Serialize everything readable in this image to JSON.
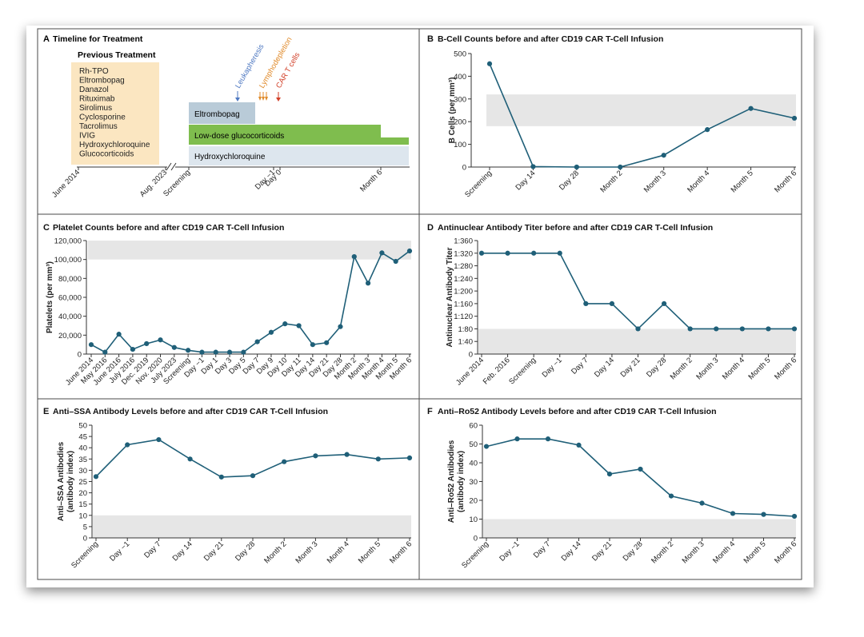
{
  "colors": {
    "line": "#1f5f78",
    "band": "#e6e6e6",
    "frame": "#4a4a4a",
    "prev_bg": "#fbe6c1",
    "eltrombopag_bg": "#b9cbd8",
    "glucocorticoid_bg": "#7fbd4e",
    "hcq_bg": "#dde6ee",
    "leuka": "#4f79c2",
    "lympho": "#e08a2a",
    "cart": "#d2412a"
  },
  "panels": {
    "a": {
      "letter": "A",
      "title": "Timeline for Treatment",
      "previous_treatment_title": "Previous Treatment",
      "previous_treatments": [
        "Rh-TPO",
        "Eltrombopag",
        "Danazol",
        "Rituximab",
        "Sirolimus",
        "Cyclosporine",
        "Tacrolimus",
        "IVIG",
        "Hydroxychloroquine",
        "Glucocorticoids"
      ],
      "bars": {
        "eltrombopag": "Eltrombopag",
        "glucocorticoids": "Low-dose glucocorticoids",
        "hydroxychloroquine": "Hydroxychloroquine"
      },
      "events": {
        "leukapheresis": "Leukapheresis",
        "lymphodepletion": "Lymphodepletion",
        "car_t": "CAR T cells"
      },
      "axis_ticks": [
        "June 2014",
        "Aug. 2023",
        "Screening",
        "Day −1",
        "Day 0",
        "Month 6"
      ]
    },
    "b": {
      "letter": "B",
      "title": "B-Cell Counts before and after CD19 CAR T-Cell Infusion",
      "ylabel": "B Cells (per mm³)"
    },
    "c": {
      "letter": "C",
      "title": "Platelet Counts before and after CD19 CAR T-Cell Infusion",
      "ylabel": "Platelets (per mm³)"
    },
    "d": {
      "letter": "D",
      "title": "Antinuclear Antibody Titer before and after CD19 CAR T-Cell Infusion",
      "ylabel": "Antinuclear Antibody Titer"
    },
    "e": {
      "letter": "E",
      "title": "Anti–SSA Antibody Levels before and after CD19 CAR T-Cell Infusion",
      "ylabel": [
        "Anti–SSA Antibodies",
        "(antibody index)"
      ]
    },
    "f": {
      "letter": "F",
      "title": "Anti–Ro52 Antibody Levels before and after CD19 CAR T-Cell Infusion",
      "ylabel": [
        "Anti–Ro52 Antibodies",
        "(antibody index)"
      ]
    }
  },
  "chart_data": [
    {
      "id": "b",
      "type": "line",
      "title": "B-Cell Counts before and after CD19 CAR T-Cell Infusion",
      "ylabel": "B Cells (per mm³)",
      "categories": [
        "Screening",
        "Day 14",
        "Day 28",
        "Month 2",
        "Month 3",
        "Month 4",
        "Month 5",
        "Month 6"
      ],
      "values": [
        455,
        2,
        0,
        0,
        52,
        165,
        258,
        215
      ],
      "ylim": [
        0,
        500
      ],
      "yticks": [
        "0",
        "100",
        "200",
        "300",
        "400",
        "500"
      ],
      "reference_band": [
        180,
        320
      ]
    },
    {
      "id": "c",
      "type": "line",
      "title": "Platelet Counts before and after CD19 CAR T-Cell Infusion",
      "ylabel": "Platelets (per mm³)",
      "categories": [
        "June 2014",
        "May 2016",
        "June 2016",
        "July 2016",
        "Dec. 2019",
        "Nov. 2020",
        "July 2023",
        "Screening",
        "Day −1",
        "Day 1",
        "Day 3",
        "Day 5",
        "Day 7",
        "Day 9",
        "Day 10",
        "Day 11",
        "Day 14",
        "Day 21",
        "Day 28",
        "Month 2",
        "Month 3",
        "Month 4",
        "Month 5",
        "Month 6"
      ],
      "values": [
        10000,
        2000,
        21000,
        5000,
        11000,
        15000,
        7000,
        4000,
        2000,
        2000,
        2000,
        2000,
        13000,
        23000,
        32000,
        30000,
        10000,
        12000,
        29000,
        103000,
        75000,
        107000,
        98000,
        109000
      ],
      "ylim": [
        0,
        120000
      ],
      "yticks": [
        "0",
        "20,000",
        "40,000",
        "60,000",
        "80,000",
        "100,000",
        "120,000"
      ],
      "reference_band": [
        100000,
        120000
      ]
    },
    {
      "id": "d",
      "type": "line",
      "title": "Antinuclear Antibody Titer before and after CD19 CAR T-Cell Infusion",
      "ylabel": "Antinuclear Antibody Titer",
      "categories": [
        "June 2014",
        "Feb. 2016",
        "Screening",
        "Day −1",
        "Day 7",
        "Day 14",
        "Day 21",
        "Day 28",
        "Month 2",
        "Month 3",
        "Month 4",
        "Month 5",
        "Month 6"
      ],
      "values": [
        320,
        320,
        320,
        320,
        160,
        160,
        80,
        160,
        80,
        80,
        80,
        80,
        80
      ],
      "ylim": [
        0,
        360
      ],
      "yticks": [
        "0",
        "1:40",
        "1:80",
        "1:120",
        "1:160",
        "1:200",
        "1:240",
        "1:280",
        "1:320",
        "1:360"
      ],
      "reference_band": [
        0,
        80
      ]
    },
    {
      "id": "e",
      "type": "line",
      "title": "Anti–SSA Antibody Levels before and after CD19 CAR T-Cell Infusion",
      "ylabel": "Anti–SSA Antibodies (antibody index)",
      "categories": [
        "Screening",
        "Day −1",
        "Day 7",
        "Day 14",
        "Day 21",
        "Day 28",
        "Month 2",
        "Month 3",
        "Month 4",
        "Month 5",
        "Month 6"
      ],
      "values": [
        27.2,
        41.3,
        43.6,
        35,
        27,
        27.6,
        33.8,
        36.4,
        37,
        35,
        35.5
      ],
      "ylim": [
        0,
        50
      ],
      "yticks": [
        "0",
        "5",
        "10",
        "15",
        "20",
        "25",
        "30",
        "35",
        "40",
        "45",
        "50"
      ],
      "reference_band": [
        0,
        10
      ]
    },
    {
      "id": "f",
      "type": "line",
      "title": "Anti–Ro52 Antibody Levels before and after CD19 CAR T-Cell Infusion",
      "ylabel": "Anti–Ro52 Antibodies (antibody index)",
      "categories": [
        "Screening",
        "Day −1",
        "Day 7",
        "Day 14",
        "Day 21",
        "Day 28",
        "Month 2",
        "Month 3",
        "Month 4",
        "Month 5",
        "Month 6"
      ],
      "values": [
        48.7,
        52.7,
        52.7,
        49.4,
        34,
        36.6,
        22.3,
        18.5,
        13,
        12.5,
        11.5
      ],
      "ylim": [
        0,
        60
      ],
      "yticks": [
        "0",
        "10",
        "20",
        "30",
        "40",
        "50",
        "60"
      ],
      "reference_band": [
        0,
        10
      ]
    }
  ]
}
